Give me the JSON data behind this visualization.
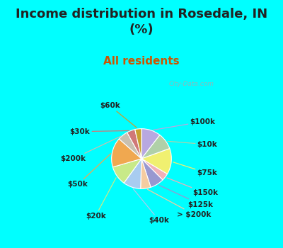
{
  "title": "Income distribution in Rosedale, IN\n(%)",
  "subtitle": "All residents",
  "bg_cyan": "#00FFFF",
  "bg_chart_color": "#d8f0e8",
  "labels": [
    "$100k",
    "$10k",
    "$75k",
    "$150k",
    "$125k",
    "> $200k",
    "$40k",
    "$20k",
    "$50k",
    "$200k",
    "$30k",
    "$60k"
  ],
  "values": [
    10.5,
    9.0,
    14.0,
    4.0,
    7.5,
    5.5,
    9.5,
    10.5,
    16.0,
    5.5,
    4.5,
    3.5
  ],
  "colors": [
    "#b8a8e0",
    "#b0d0a8",
    "#f0f070",
    "#f0b0b8",
    "#9898d0",
    "#f5cca0",
    "#a8ccf0",
    "#c8ea88",
    "#f0a850",
    "#c8c0b0",
    "#d07878",
    "#c8a030"
  ],
  "title_fontsize": 13,
  "subtitle_fontsize": 11,
  "subtitle_color": "#cc5500",
  "label_fontsize": 7.5,
  "watermark": "City-Data.com"
}
